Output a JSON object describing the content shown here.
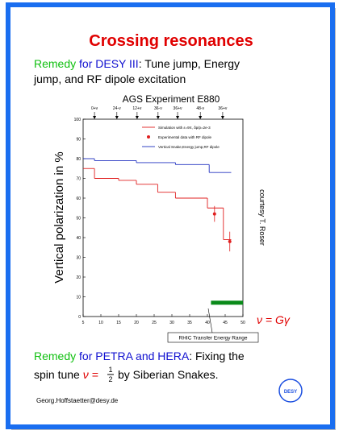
{
  "slide": {
    "title": "Crossing resonances",
    "remedy1": {
      "w1": "Remedy",
      "w2": "for DESY III",
      "w3": ": Tune jump, Energy",
      "w4": "jump, and RF dipole excitation"
    },
    "remedy2": {
      "w1": "Remedy",
      "w2": "for PETRA and HERA",
      "w3": ": Fixing the",
      "w4": "spin tune",
      "nu": "ν = ",
      "num": "1",
      "den": "2",
      "w5": "by Siberian Snakes."
    },
    "credit": "courtesy T. Roser",
    "footer": "Georg.Hoffstaetter@desy.de",
    "logo": "DESY"
  },
  "chart_data": {
    "type": "step",
    "title": "AGS Experiment E880",
    "y_label": "Vertical polarization in %",
    "x_label": "ν = Gγ",
    "xlim": [
      5,
      50
    ],
    "xticks": [
      5,
      10,
      15,
      20,
      25,
      30,
      35,
      40,
      45,
      50
    ],
    "ylim": [
      0,
      100
    ],
    "yticks": [
      0,
      10,
      20,
      30,
      40,
      50,
      60,
      70,
      80,
      90,
      100
    ],
    "resonances": [
      {
        "label": "0+ν",
        "x": 8.2
      },
      {
        "label": "24-ν",
        "x": 14.5
      },
      {
        "label": "12+ν",
        "x": 20.2
      },
      {
        "label": "36-ν",
        "x": 26.1
      },
      {
        "label": "36+ν",
        "x": 31.6
      },
      {
        "label": "48-ν",
        "x": 38
      },
      {
        "label": "36+ν",
        "x": 44.3
      }
    ],
    "series": [
      {
        "name": "Simulation with ε=9π, δp/p=2e-3",
        "color": "#e02020",
        "x": [
          5,
          8.2,
          15,
          20,
          26,
          31,
          40,
          44.5,
          46.7
        ],
        "values": [
          75,
          70,
          69,
          67,
          63,
          60,
          55,
          39,
          39
        ]
      },
      {
        "name": "Vertical Snake,Energy jump,RF dipole",
        "color": "#2030c0",
        "x": [
          5,
          8.2,
          20,
          31,
          40.5,
          46.7
        ],
        "values": [
          80,
          79,
          78,
          77,
          73,
          73
        ]
      }
    ],
    "points": {
      "name": "Experimental data with RF dipole",
      "color": "#e02020",
      "x": [
        42,
        46.3
      ],
      "values": [
        52,
        38
      ],
      "errors": [
        4,
        5
      ]
    },
    "range": {
      "label": "RHIC Transfer Energy Range",
      "color": "#0a8a1a",
      "x": [
        41,
        50
      ],
      "y": 7
    }
  }
}
